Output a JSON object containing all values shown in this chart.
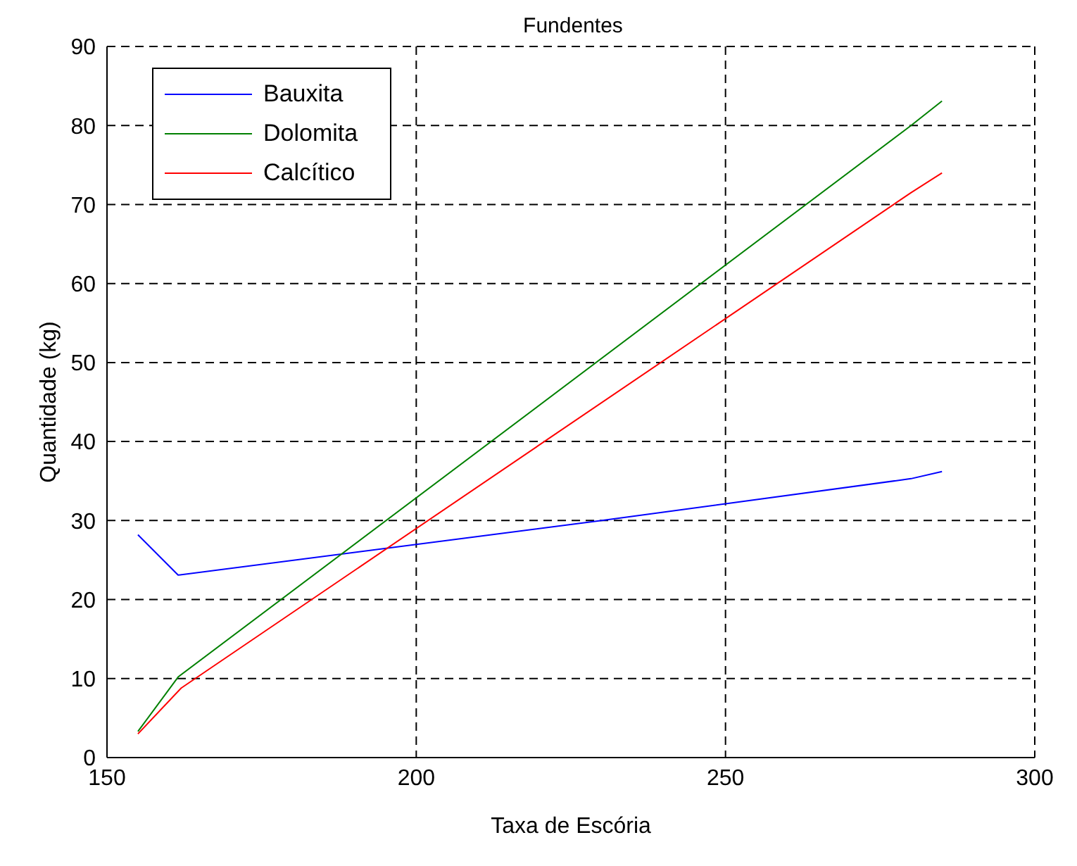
{
  "chart_data": {
    "type": "line",
    "title": "Fundentes",
    "xlabel": "Taxa de Escória",
    "ylabel": "Quantidade (kg)",
    "xlim": [
      150,
      300
    ],
    "xticks": [
      150,
      200,
      250,
      300
    ],
    "ylim": [
      0,
      90
    ],
    "yticks": [
      0,
      10,
      20,
      30,
      40,
      50,
      60,
      70,
      80,
      90
    ],
    "grid": true,
    "legend": "top left",
    "line_style": "solid",
    "marker": "none",
    "series": [
      {
        "name": "Bauxita",
        "color": "#0000ff",
        "x": [
          155,
          161.5,
          230,
          280,
          285
        ],
        "values": [
          28.2,
          23.1,
          30,
          35.3,
          36.2
        ]
      },
      {
        "name": "Dolomita",
        "color": "#008000",
        "x": [
          155,
          161.5,
          280,
          285
        ],
        "values": [
          3.3,
          10.2,
          80,
          83.1
        ]
      },
      {
        "name": "Calcítico",
        "color": "#ff0000",
        "x": [
          155,
          162,
          280,
          285
        ],
        "values": [
          3,
          8.8,
          71.5,
          74
        ]
      }
    ]
  }
}
